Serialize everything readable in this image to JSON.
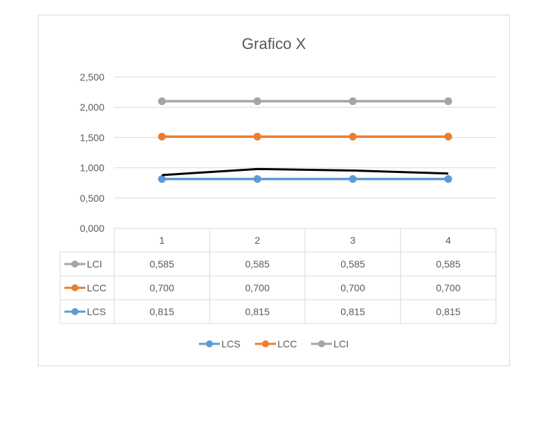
{
  "chart_data": {
    "type": "line",
    "title": "Grafico X",
    "xlabel": "",
    "ylabel": "",
    "categories": [
      "1",
      "2",
      "3",
      "4"
    ],
    "ylim": [
      0,
      2.5
    ],
    "y_ticks": [
      "0,000",
      "0,500",
      "1,000",
      "1,500",
      "2,000",
      "2,500"
    ],
    "y_tick_values": [
      0,
      0.5,
      1.0,
      1.5,
      2.0,
      2.5
    ],
    "grid": true,
    "legend_position": "bottom",
    "series": [
      {
        "name": "LCS",
        "color": "#5b9bd5",
        "values": [
          0.815,
          0.815,
          0.815,
          0.815
        ],
        "labels": [
          "0,815",
          "0,815",
          "0,815",
          "0,815"
        ]
      },
      {
        "name": "LCC",
        "color": "#ed7d31",
        "values": [
          1.515,
          1.515,
          1.515,
          1.515
        ],
        "labels": [
          "0,700",
          "0,700",
          "0,700",
          "0,700"
        ]
      },
      {
        "name": "LCI",
        "color": "#a5a5a5",
        "values": [
          2.1,
          2.1,
          2.1,
          2.1
        ],
        "labels": [
          "0,585",
          "0,585",
          "0,585",
          "0,585"
        ]
      }
    ],
    "extra_line": {
      "color": "#000000",
      "values": [
        0.88,
        0.98,
        0.955,
        0.905
      ]
    },
    "table_order": [
      "LCI",
      "LCC",
      "LCS"
    ]
  }
}
